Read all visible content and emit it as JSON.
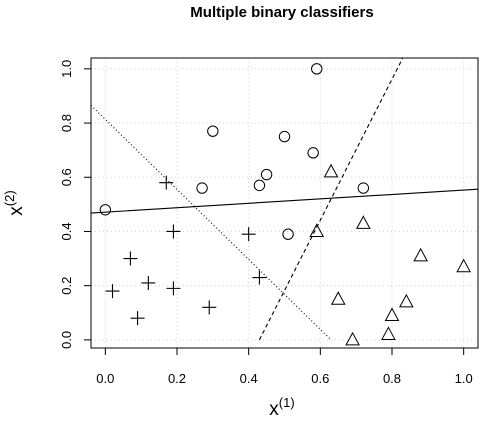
{
  "chart_data": {
    "type": "scatter",
    "title": "Multiple binary classifiers",
    "xlabel": {
      "base": "x",
      "superscript": "(1)"
    },
    "ylabel": {
      "base": "x",
      "superscript": "(2)"
    },
    "xlim": [
      -0.04,
      1.04
    ],
    "ylim": [
      -0.03,
      1.04
    ],
    "xticks": [
      0.0,
      0.2,
      0.4,
      0.6,
      0.8,
      1.0
    ],
    "yticks": [
      0.0,
      0.2,
      0.4,
      0.6,
      0.8,
      1.0
    ],
    "tick_labels": [
      "0.0",
      "0.2",
      "0.4",
      "0.6",
      "0.8",
      "1.0"
    ],
    "grid": true,
    "series": [
      {
        "marker": "circle",
        "points": [
          [
            0.0,
            0.48
          ],
          [
            0.27,
            0.56
          ],
          [
            0.3,
            0.77
          ],
          [
            0.43,
            0.57
          ],
          [
            0.45,
            0.61
          ],
          [
            0.5,
            0.75
          ],
          [
            0.51,
            0.39
          ],
          [
            0.58,
            0.69
          ],
          [
            0.59,
            1.0
          ],
          [
            0.72,
            0.56
          ]
        ]
      },
      {
        "marker": "plus",
        "points": [
          [
            0.02,
            0.18
          ],
          [
            0.07,
            0.3
          ],
          [
            0.09,
            0.08
          ],
          [
            0.12,
            0.21
          ],
          [
            0.17,
            0.58
          ],
          [
            0.19,
            0.4
          ],
          [
            0.19,
            0.19
          ],
          [
            0.29,
            0.12
          ],
          [
            0.4,
            0.39
          ],
          [
            0.43,
            0.23
          ]
        ]
      },
      {
        "marker": "triangle",
        "points": [
          [
            0.59,
            0.4
          ],
          [
            0.63,
            0.62
          ],
          [
            0.65,
            0.15
          ],
          [
            0.69,
            0.0
          ],
          [
            0.72,
            0.43
          ],
          [
            0.79,
            0.02
          ],
          [
            0.8,
            0.09
          ],
          [
            0.84,
            0.14
          ],
          [
            0.88,
            0.31
          ],
          [
            1.0,
            0.27
          ]
        ]
      }
    ],
    "lines": [
      {
        "style": "solid",
        "x": [
          -0.04,
          1.04
        ],
        "y": [
          0.468,
          0.556
        ]
      },
      {
        "style": "dashed",
        "x": [
          0.43,
          0.83
        ],
        "y": [
          0.0,
          1.04
        ]
      },
      {
        "style": "dotted",
        "x": [
          -0.04,
          0.63
        ],
        "y": [
          0.865,
          0.0
        ]
      }
    ]
  }
}
